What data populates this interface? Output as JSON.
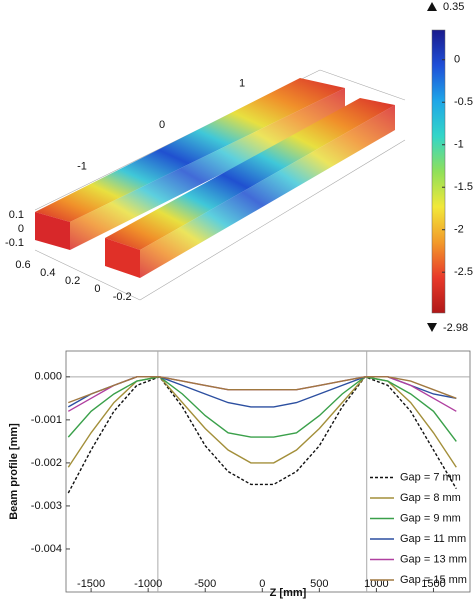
{
  "chart_data": [
    {
      "type": "surface3d",
      "length_ticks": [
        -1,
        0,
        1
      ],
      "height_ticks": [
        -0.1,
        0,
        0.1
      ],
      "depth_ticks": [
        0.6,
        0.4,
        0.2,
        0,
        -0.2
      ],
      "colorbar": {
        "max": 0.35,
        "min": -2.98,
        "ticks": [
          0,
          -0.5,
          -1,
          -1.5,
          -2,
          -2.5
        ],
        "colors": [
          "#1a1a8c",
          "#1f4fd8",
          "#1fa6e8",
          "#33d6c8",
          "#8fe05a",
          "#f2e83a",
          "#f29a2a",
          "#e8392a",
          "#b01818"
        ]
      }
    },
    {
      "type": "line",
      "xlabel": "Z [mm]",
      "ylabel": "Beam profile [mm]",
      "x": [
        -1700,
        -1500,
        -1300,
        -1100,
        -900,
        -700,
        -500,
        -300,
        -100,
        100,
        300,
        500,
        700,
        900,
        1100,
        1300,
        1500,
        1700
      ],
      "series": [
        {
          "name": "Gap = 7 mm",
          "color": "#111111",
          "style": "dashed",
          "values": [
            -0.0027,
            -0.0017,
            -0.0008,
            -0.0002,
            0,
            -0.0007,
            -0.0016,
            -0.0022,
            -0.0025,
            -0.0025,
            -0.0022,
            -0.0016,
            -0.0007,
            0,
            -0.0002,
            -0.0008,
            -0.0017,
            -0.0026
          ]
        },
        {
          "name": "Gap = 8 mm",
          "color": "#a38f3a",
          "style": "solid",
          "values": [
            -0.0021,
            -0.0013,
            -0.0006,
            -0.0001,
            0,
            -0.0006,
            -0.0012,
            -0.0017,
            -0.002,
            -0.002,
            -0.0017,
            -0.0012,
            -0.0006,
            0,
            -0.0001,
            -0.0006,
            -0.0013,
            -0.0021
          ]
        },
        {
          "name": "Gap = 9 mm",
          "color": "#3aa04a",
          "style": "solid",
          "values": [
            -0.0014,
            -0.0008,
            -0.0004,
            -0.0001,
            0,
            -0.0004,
            -0.0009,
            -0.0013,
            -0.0014,
            -0.0014,
            -0.0013,
            -0.0009,
            -0.0004,
            0,
            -0.0001,
            -0.0004,
            -0.0008,
            -0.0015
          ]
        },
        {
          "name": "Gap = 11 mm",
          "color": "#2c4fa0",
          "style": "solid",
          "values": [
            -0.0007,
            -0.0004,
            -0.0002,
            0,
            0,
            -0.0002,
            -0.0004,
            -0.0006,
            -0.0007,
            -0.0007,
            -0.0006,
            -0.0004,
            -0.0002,
            0,
            0,
            -0.0002,
            -0.0004,
            -0.0005
          ]
        },
        {
          "name": "Gap = 13 mm",
          "color": "#b040a0",
          "style": "solid",
          "values": [
            -0.0008,
            -0.0005,
            -0.0002,
            0,
            0,
            -0.0001,
            -0.0002,
            -0.0003,
            -0.0003,
            -0.0003,
            -0.0003,
            -0.0002,
            -0.0001,
            0,
            0,
            -0.0002,
            -0.0005,
            -0.0008
          ]
        },
        {
          "name": "Gap = 15 mm",
          "color": "#a07840",
          "style": "solid",
          "values": [
            -0.0006,
            -0.0004,
            -0.0002,
            0,
            0,
            -0.0001,
            -0.0002,
            -0.0003,
            -0.0003,
            -0.0003,
            -0.0003,
            -0.0002,
            -0.0001,
            0,
            0,
            -0.0001,
            -0.0003,
            -0.0005
          ]
        }
      ],
      "xlim": [
        -1720,
        1820
      ],
      "xticks": [
        -1500,
        -1000,
        -500,
        0,
        500,
        1000,
        1500
      ],
      "ylim": [
        -0.005,
        0.0006
      ],
      "yticks": [
        {
          "value": 0,
          "label": "0.000"
        },
        -0.001,
        -0.002,
        -0.003,
        -0.004
      ],
      "ref_lines_x": [
        -915,
        915
      ],
      "ref_lines_y": [
        0
      ],
      "legend": "lower right"
    }
  ]
}
